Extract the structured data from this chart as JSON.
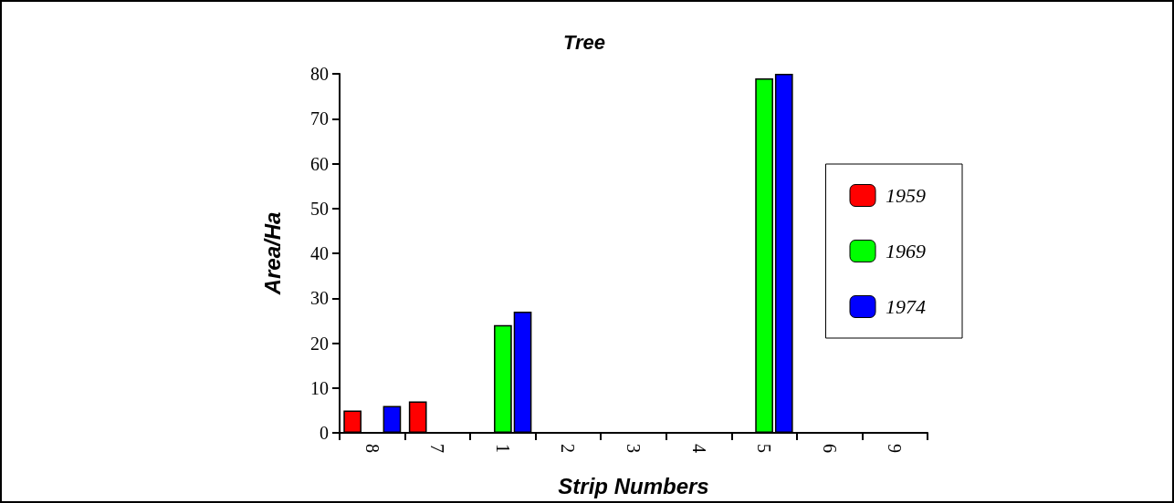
{
  "chart_data": {
    "type": "bar",
    "title": "Tree",
    "xlabel": "Strip Numbers",
    "ylabel": "Area/Ha",
    "categories": [
      "8",
      "7",
      "1",
      "2",
      "3",
      "4",
      "5",
      "6",
      "9"
    ],
    "series": [
      {
        "name": "1959",
        "color": "#ff0000",
        "values": [
          5,
          7,
          null,
          null,
          null,
          null,
          null,
          null,
          null
        ]
      },
      {
        "name": "1969",
        "color": "#00ff00",
        "values": [
          null,
          null,
          24,
          null,
          null,
          null,
          79,
          null,
          null
        ]
      },
      {
        "name": "1974",
        "color": "#0000ff",
        "values": [
          6,
          null,
          27,
          null,
          null,
          null,
          80,
          null,
          null
        ]
      }
    ],
    "ylim": [
      0,
      80
    ],
    "yticks": [
      0,
      10,
      20,
      30,
      40,
      50,
      60,
      70,
      80
    ],
    "grid": false,
    "legend": "right"
  }
}
